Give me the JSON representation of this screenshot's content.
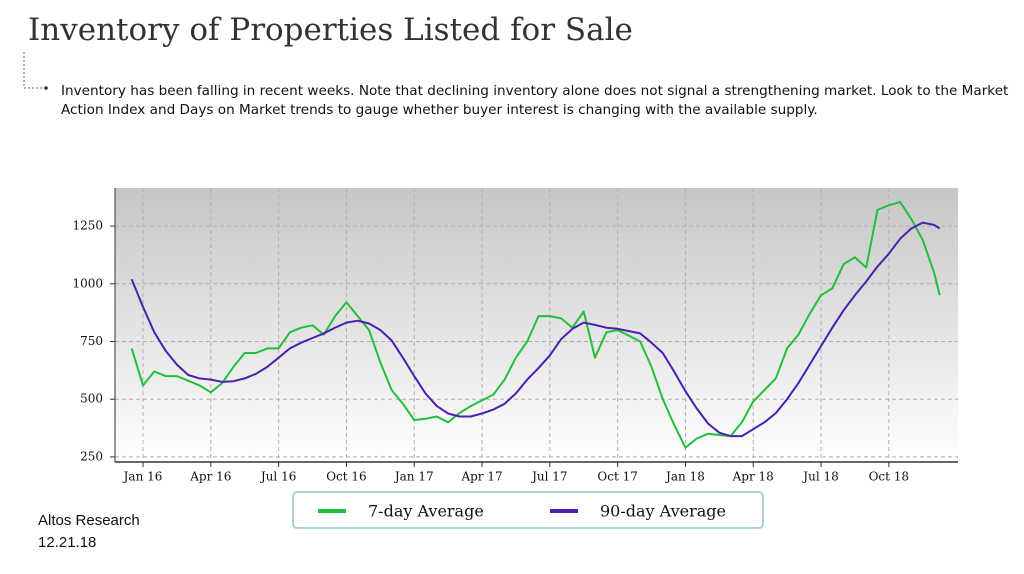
{
  "chart_data": {
    "type": "line",
    "title": "Inventory of Properties Listed for Sale",
    "subtitle": "Inventory has been falling in recent weeks. Note that declining inventory alone does not signal a strengthening market. Look to the Market Action Index and Days on Market trends to gauge whether buyer interest is changing with the available supply.",
    "source": "Altos Research",
    "date": "12.21.18",
    "grid": true,
    "xlim": [
      -1.24,
      36.06
    ],
    "ylim": [
      228,
      1415
    ],
    "yticks": [
      250,
      500,
      750,
      1000,
      1250
    ],
    "xticks": [
      {
        "value": 0,
        "label": "Jan 16"
      },
      {
        "value": 3,
        "label": "Apr 16"
      },
      {
        "value": 6,
        "label": "Jul 16"
      },
      {
        "value": 9,
        "label": "Oct 16"
      },
      {
        "value": 12,
        "label": "Jan 17"
      },
      {
        "value": 15,
        "label": "Apr 17"
      },
      {
        "value": 18,
        "label": "Jul 17"
      },
      {
        "value": 21,
        "label": "Oct 17"
      },
      {
        "value": 24,
        "label": "Jan 18"
      },
      {
        "value": 27,
        "label": "Apr 18"
      },
      {
        "value": 30,
        "label": "Jul 18"
      },
      {
        "value": 33,
        "label": "Oct 18"
      }
    ],
    "x": [
      -0.5,
      0,
      0.5,
      1,
      1.5,
      2,
      2.5,
      3,
      3.5,
      4,
      4.5,
      5,
      5.5,
      6,
      6.5,
      7,
      7.5,
      8,
      8.5,
      9,
      9.5,
      10,
      10.5,
      11,
      11.5,
      12,
      12.5,
      13,
      13.5,
      14,
      14.5,
      15,
      15.5,
      16,
      16.5,
      17,
      17.5,
      18,
      18.5,
      19,
      19.5,
      20,
      20.5,
      21,
      21.5,
      22,
      22.5,
      23,
      23.5,
      24,
      24.5,
      25,
      25.5,
      26,
      26.5,
      27,
      27.5,
      28,
      28.5,
      29,
      29.5,
      30,
      30.5,
      31,
      31.5,
      32,
      32.5,
      33,
      33.5,
      34,
      34.5,
      35,
      35.25
    ],
    "series": [
      {
        "name": "7-day Average",
        "color": "#22c03a",
        "values": [
          720,
          560,
          620,
          600,
          600,
          580,
          560,
          530,
          570,
          640,
          700,
          700,
          720,
          720,
          790,
          810,
          820,
          780,
          860,
          920,
          860,
          800,
          660,
          540,
          480,
          410,
          415,
          425,
          400,
          440,
          470,
          495,
          520,
          585,
          680,
          750,
          860,
          860,
          850,
          810,
          880,
          680,
          790,
          800,
          775,
          750,
          640,
          500,
          390,
          290,
          330,
          350,
          345,
          340,
          400,
          490,
          540,
          590,
          720,
          780,
          870,
          950,
          980,
          1085,
          1115,
          1070,
          1320,
          1340,
          1355,
          1280,
          1190,
          1050,
          950
        ]
      },
      {
        "name": "90-day Average",
        "color": "#4b1fb0",
        "values": [
          1020,
          900,
          790,
          710,
          650,
          605,
          590,
          585,
          575,
          578,
          590,
          610,
          640,
          680,
          720,
          745,
          765,
          785,
          810,
          832,
          840,
          828,
          800,
          755,
          680,
          600,
          525,
          470,
          438,
          425,
          425,
          438,
          455,
          480,
          525,
          585,
          635,
          690,
          760,
          805,
          832,
          822,
          810,
          805,
          795,
          785,
          745,
          700,
          620,
          535,
          460,
          395,
          355,
          340,
          340,
          370,
          400,
          440,
          500,
          570,
          650,
          730,
          810,
          885,
          950,
          1010,
          1075,
          1130,
          1195,
          1240,
          1265,
          1255,
          1240
        ]
      }
    ]
  }
}
